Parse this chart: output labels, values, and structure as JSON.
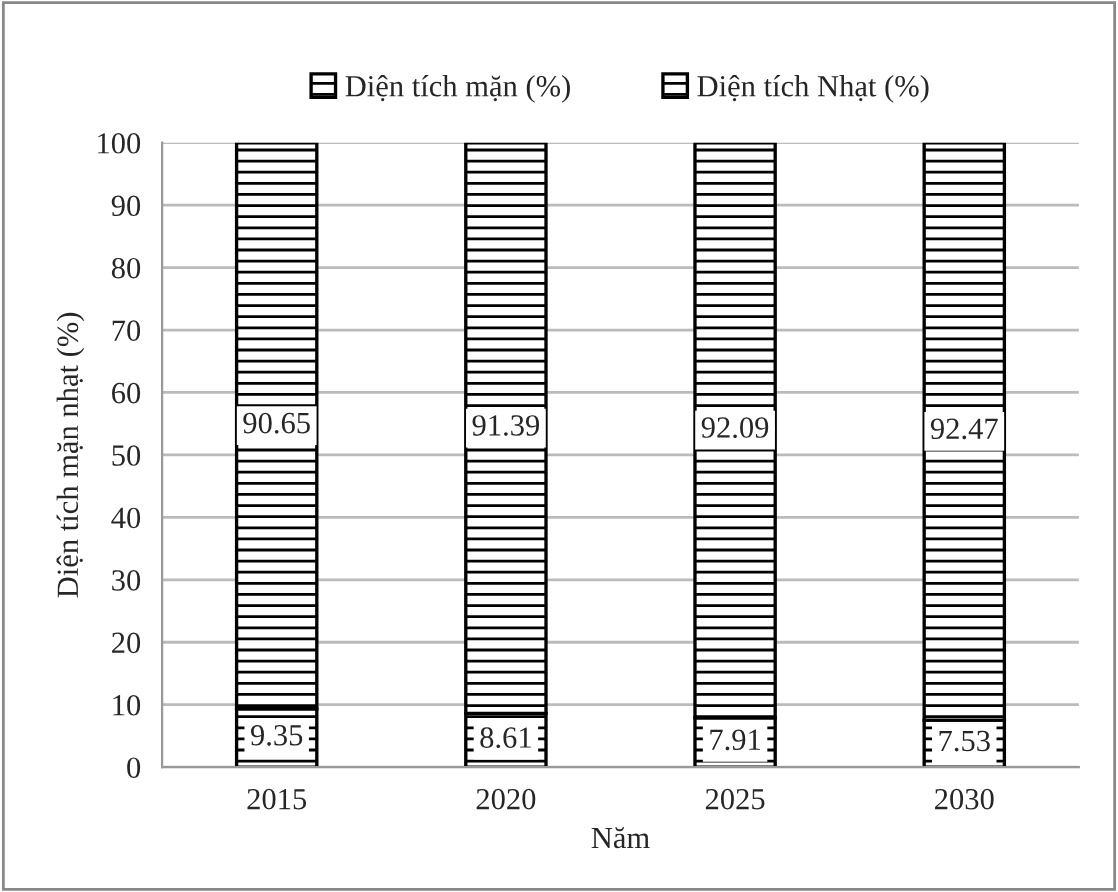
{
  "chart_data": {
    "type": "bar",
    "stacked": true,
    "xlabel": "Năm",
    "ylabel": "Diện tích mặn nhạt (%)",
    "categories": [
      "2015",
      "2020",
      "2025",
      "2030"
    ],
    "series": [
      {
        "name": "Diện tích mặn (%)",
        "color": "#000000",
        "values": [
          9.35,
          8.61,
          7.91,
          7.53
        ]
      },
      {
        "name": "Diện tích Nhạt (%)",
        "color": "#000000",
        "values": [
          90.65,
          91.39,
          92.09,
          92.47
        ]
      }
    ],
    "ylim": [
      0,
      100
    ],
    "yticks": [
      0,
      10,
      20,
      30,
      40,
      50,
      60,
      70,
      80,
      90,
      100
    ],
    "grid": "y",
    "legend": "top",
    "data_labels": true
  }
}
